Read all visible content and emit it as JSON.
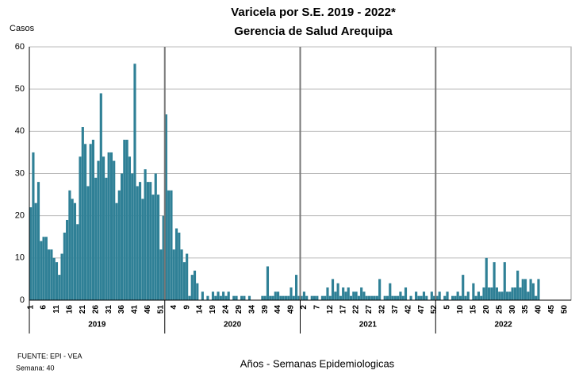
{
  "chart_data": {
    "type": "bar",
    "title": [
      "Varicela por S.E. 2019 - 2022*",
      "Gerencia de Salud Arequipa"
    ],
    "ylabel": "Casos",
    "xlabel": "Años - Semanas Epidemiologicas",
    "source": [
      "FUENTE: EPI - VEA",
      "Semana: 40"
    ],
    "color": "#2f8096",
    "ylim": [
      0,
      60
    ],
    "yticks": [
      0,
      10,
      20,
      30,
      40,
      50,
      60
    ],
    "grid": true,
    "groups": [
      {
        "label": "2019",
        "categories": [
          "1",
          null,
          null,
          null,
          null,
          "6",
          null,
          null,
          null,
          null,
          "11",
          null,
          null,
          null,
          null,
          "16",
          null,
          null,
          null,
          null,
          "21",
          null,
          null,
          null,
          null,
          "26",
          null,
          null,
          null,
          null,
          "31",
          null,
          null,
          null,
          null,
          "36",
          null,
          null,
          null,
          null,
          "41",
          null,
          null,
          null,
          null,
          "46",
          null,
          null,
          null,
          null,
          "51",
          null
        ],
        "values": [
          22,
          35,
          23,
          28,
          14,
          15,
          15,
          12,
          12,
          10,
          9,
          6,
          11,
          16,
          19,
          26,
          24,
          23,
          18,
          34,
          41,
          37,
          27,
          37,
          38,
          29,
          33,
          49,
          34,
          29,
          35,
          35,
          33,
          23,
          26,
          30,
          38,
          38,
          34,
          30,
          56,
          27,
          28,
          24,
          31,
          28,
          28,
          25,
          30,
          25,
          12,
          20
        ]
      },
      {
        "label": "2020",
        "categories": [
          null,
          null,
          null,
          "4",
          null,
          null,
          null,
          null,
          "9",
          null,
          null,
          null,
          null,
          "14",
          null,
          null,
          null,
          null,
          "19",
          null,
          null,
          null,
          null,
          "24",
          null,
          null,
          null,
          null,
          "29",
          null,
          null,
          null,
          null,
          "34",
          null,
          null,
          null,
          null,
          "39",
          null,
          null,
          null,
          null,
          "44",
          null,
          null,
          null,
          null,
          "49",
          null,
          null,
          null
        ],
        "values": [
          44,
          26,
          26,
          12,
          17,
          16,
          12,
          9,
          11,
          1,
          6,
          7,
          4,
          0,
          2,
          0,
          1,
          0,
          2,
          1,
          2,
          1,
          2,
          1,
          2,
          0,
          1,
          1,
          0,
          1,
          1,
          0,
          1,
          0,
          0,
          0,
          0,
          1,
          1,
          8,
          1,
          1,
          2,
          2,
          1,
          1,
          1,
          1,
          3,
          1,
          6,
          1
        ]
      },
      {
        "label": "2021",
        "categories": [
          null,
          "2",
          null,
          null,
          null,
          null,
          "7",
          null,
          null,
          null,
          null,
          "12",
          null,
          null,
          null,
          null,
          "17",
          null,
          null,
          null,
          null,
          "22",
          null,
          null,
          null,
          null,
          "27",
          null,
          null,
          null,
          null,
          "32",
          null,
          null,
          null,
          null,
          "37",
          null,
          null,
          null,
          null,
          "42",
          null,
          null,
          null,
          null,
          "47",
          null,
          null,
          null,
          null,
          "52"
        ],
        "values": [
          1,
          2,
          1,
          0,
          1,
          1,
          1,
          0,
          1,
          1,
          3,
          1,
          5,
          2,
          4,
          1,
          3,
          2,
          3,
          1,
          2,
          2,
          1,
          3,
          2,
          1,
          1,
          1,
          1,
          1,
          5,
          0,
          1,
          1,
          4,
          1,
          1,
          1,
          2,
          1,
          3,
          0,
          1,
          0,
          2,
          1,
          1,
          2,
          1,
          0,
          2,
          1
        ]
      },
      {
        "label": "2022",
        "categories": [
          null,
          null,
          null,
          null,
          "5",
          null,
          null,
          null,
          null,
          "10",
          null,
          null,
          null,
          null,
          "15",
          null,
          null,
          null,
          null,
          "20",
          null,
          null,
          null,
          null,
          "25",
          null,
          null,
          null,
          null,
          "30",
          null,
          null,
          null,
          null,
          "35",
          null,
          null,
          null,
          null,
          "40",
          null,
          null,
          null,
          null,
          "45",
          null,
          null,
          null,
          null,
          "50",
          null,
          null
        ],
        "values": [
          1,
          2,
          0,
          1,
          2,
          0,
          1,
          1,
          2,
          1,
          6,
          1,
          2,
          0,
          4,
          1,
          2,
          1,
          3,
          10,
          3,
          3,
          9,
          3,
          2,
          2,
          9,
          2,
          2,
          3,
          3,
          7,
          3,
          5,
          5,
          2,
          5,
          4,
          1,
          5,
          null,
          null,
          null,
          null,
          null,
          null,
          null,
          null,
          null,
          null,
          null,
          null
        ]
      }
    ]
  }
}
